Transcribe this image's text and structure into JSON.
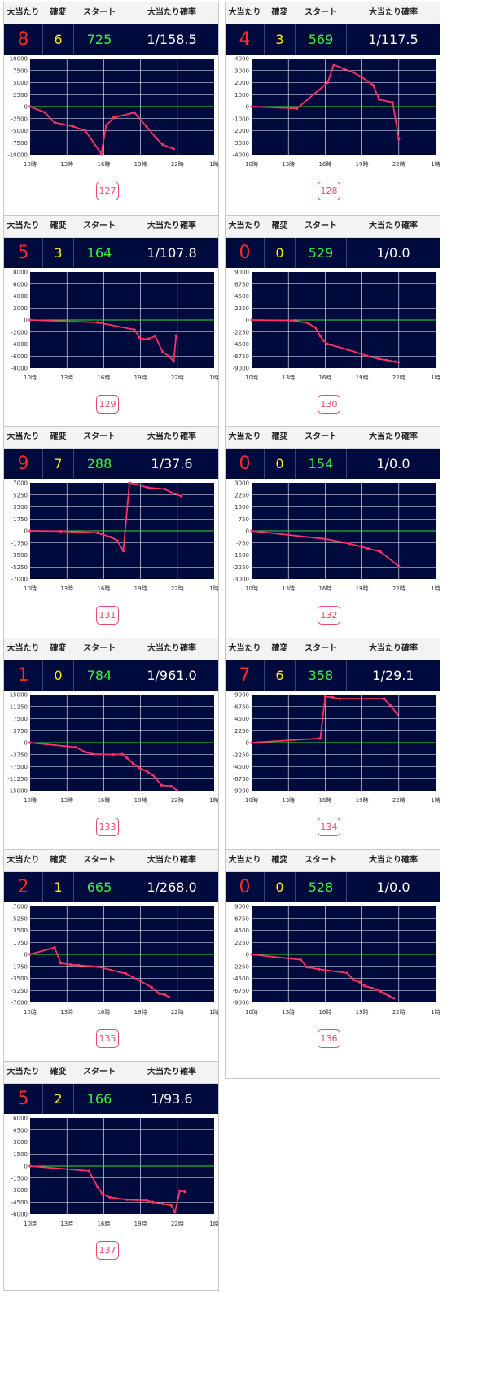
{
  "header": {
    "hits_label": "大当たり",
    "kakuhen_label": "確変",
    "start_label": "スタート",
    "rate_label": "大当たり確率"
  },
  "x_ticks": [
    "10時",
    "13時",
    "16時",
    "19時",
    "22時",
    "1時"
  ],
  "colors": {
    "panel_bg": "#000a3c",
    "zero_line": "#33dd33",
    "series_line": "#ff3366",
    "hits_text": "#ff2a2a",
    "kakuhen_text": "#ffee00",
    "start_text": "#3cf03c",
    "badge": "#e94b6a"
  },
  "machines": [
    {
      "number": "127",
      "hits": "8",
      "kakuhen": "6",
      "start": "725",
      "rate": "1/158.5",
      "chart_data": {
        "type": "line",
        "x_unit": "hour",
        "xlim": [
          10,
          25
        ],
        "ylim": [
          -10000,
          10000
        ],
        "y_ticks": [
          "10000",
          "7500",
          "5000",
          "2500",
          "0",
          "-2500",
          "-5000",
          "-7500",
          "-10000"
        ],
        "x": [
          10.0,
          11.2,
          12.0,
          13.5,
          14.5,
          15.8,
          16.2,
          16.8,
          18.5,
          19.5,
          20.3,
          20.8,
          21.7
        ],
        "y": [
          0,
          -1200,
          -3300,
          -4100,
          -5000,
          -9800,
          -3900,
          -2300,
          -1200,
          -4200,
          -6600,
          -7900,
          -8800
        ]
      }
    },
    {
      "number": "128",
      "hits": "4",
      "kakuhen": "3",
      "start": "569",
      "rate": "1/117.5",
      "chart_data": {
        "type": "line",
        "x_unit": "hour",
        "xlim": [
          10,
          25
        ],
        "ylim": [
          -4000,
          4000
        ],
        "y_ticks": [
          "4000",
          "3000",
          "2000",
          "1000",
          "0",
          "-1000",
          "-2000",
          "-3000",
          "-4000"
        ],
        "x": [
          10.0,
          13.7,
          16.2,
          16.7,
          17.5,
          18.3,
          19.0,
          19.9,
          20.4,
          21.5,
          22.0
        ],
        "y": [
          0,
          -150,
          2000,
          3500,
          3150,
          2850,
          2450,
          1800,
          600,
          350,
          -2700
        ]
      }
    },
    {
      "number": "129",
      "hits": "5",
      "kakuhen": "3",
      "start": "164",
      "rate": "1/107.8",
      "chart_data": {
        "type": "line",
        "x_unit": "hour",
        "xlim": [
          10,
          25
        ],
        "ylim": [
          -8000,
          8000
        ],
        "y_ticks": [
          "8000",
          "6000",
          "4000",
          "2000",
          "0",
          "-2000",
          "-4000",
          "-6000",
          "-8000"
        ],
        "x": [
          10.0,
          15.5,
          18.5,
          18.9,
          19.2,
          19.7,
          20.2,
          20.8,
          21.3,
          21.7,
          21.9
        ],
        "y": [
          0,
          -400,
          -1600,
          -2900,
          -3200,
          -3100,
          -2700,
          -5300,
          -6000,
          -6900,
          -2600
        ]
      }
    },
    {
      "number": "130",
      "hits": "0",
      "kakuhen": "0",
      "start": "529",
      "rate": "1/0.0",
      "chart_data": {
        "type": "line",
        "x_unit": "hour",
        "xlim": [
          10,
          25
        ],
        "ylim": [
          -9000,
          9000
        ],
        "y_ticks": [
          "9000",
          "6750",
          "4500",
          "2250",
          "0",
          "-2250",
          "-4500",
          "-6750",
          "-9000"
        ],
        "x": [
          10.0,
          13.5,
          14.6,
          15.2,
          15.6,
          15.9,
          16.2,
          17.8,
          19.4,
          20.4,
          21.0,
          21.7,
          22.0
        ],
        "y": [
          0,
          -100,
          -600,
          -1400,
          -3000,
          -3900,
          -4500,
          -5500,
          -6700,
          -7300,
          -7500,
          -7800,
          -7900
        ]
      }
    },
    {
      "number": "131",
      "hits": "9",
      "kakuhen": "7",
      "start": "288",
      "rate": "1/37.6",
      "chart_data": {
        "type": "line",
        "x_unit": "hour",
        "xlim": [
          10,
          25
        ],
        "ylim": [
          -7000,
          7000
        ],
        "y_ticks": [
          "7000",
          "5250",
          "3500",
          "1750",
          "0",
          "-1750",
          "-3500",
          "-5250",
          "-7000"
        ],
        "x": [
          10.0,
          12.5,
          15.5,
          16.6,
          17.1,
          17.6,
          18.1,
          18.7,
          19.6,
          21.0,
          21.5,
          22.3
        ],
        "y": [
          0,
          -50,
          -300,
          -900,
          -1400,
          -2900,
          7000,
          6800,
          6300,
          6100,
          5600,
          5100
        ]
      }
    },
    {
      "number": "132",
      "hits": "0",
      "kakuhen": "0",
      "start": "154",
      "rate": "1/0.0",
      "chart_data": {
        "type": "line",
        "x_unit": "hour",
        "xlim": [
          10,
          25
        ],
        "ylim": [
          -3000,
          3000
        ],
        "y_ticks": [
          "3000",
          "2250",
          "1500",
          "750",
          "0",
          "-750",
          "-1500",
          "-2250",
          "-3000"
        ],
        "x": [
          10.0,
          16.0,
          18.0,
          19.5,
          20.5,
          22.0
        ],
        "y": [
          0,
          -500,
          -800,
          -1100,
          -1300,
          -2200
        ]
      }
    },
    {
      "number": "133",
      "hits": "1",
      "kakuhen": "0",
      "start": "784",
      "rate": "1/961.0",
      "chart_data": {
        "type": "line",
        "x_unit": "hour",
        "xlim": [
          10,
          25
        ],
        "ylim": [
          -15000,
          15000
        ],
        "y_ticks": [
          "15000",
          "11250",
          "7500",
          "3750",
          "0",
          "-3750",
          "-7500",
          "-11250",
          "-15000"
        ],
        "x": [
          10.0,
          13.7,
          14.5,
          15.2,
          16.8,
          17.5,
          17.9,
          18.4,
          18.9,
          19.6,
          20.0,
          20.7,
          21.5,
          22.0
        ],
        "y": [
          0,
          -1400,
          -2900,
          -3600,
          -3700,
          -3600,
          -4800,
          -6500,
          -7800,
          -9200,
          -10100,
          -13300,
          -13600,
          -15000
        ]
      }
    },
    {
      "number": "134",
      "hits": "7",
      "kakuhen": "6",
      "start": "358",
      "rate": "1/29.1",
      "chart_data": {
        "type": "line",
        "x_unit": "hour",
        "xlim": [
          10,
          25
        ],
        "ylim": [
          -9000,
          9000
        ],
        "y_ticks": [
          "9000",
          "6750",
          "4500",
          "2250",
          "0",
          "-2250",
          "-4500",
          "-6750",
          "-9000"
        ],
        "x": [
          10.0,
          15.6,
          16.0,
          16.6,
          17.2,
          20.8,
          21.3,
          21.9
        ],
        "y": [
          0,
          800,
          8600,
          8500,
          8200,
          8200,
          7000,
          5300
        ]
      }
    },
    {
      "number": "135",
      "hits": "2",
      "kakuhen": "1",
      "start": "665",
      "rate": "1/268.0",
      "chart_data": {
        "type": "line",
        "x_unit": "hour",
        "xlim": [
          10,
          25
        ],
        "ylim": [
          -7000,
          7000
        ],
        "y_ticks": [
          "7000",
          "5250",
          "3500",
          "1750",
          "0",
          "-1750",
          "-3500",
          "-5250",
          "-7000"
        ],
        "x": [
          10.0,
          12.0,
          12.5,
          13.3,
          14.0,
          15.5,
          17.8,
          19.0,
          19.9,
          20.5,
          21.0,
          21.3
        ],
        "y": [
          0,
          1000,
          -1300,
          -1500,
          -1600,
          -1800,
          -2800,
          -3900,
          -4800,
          -5700,
          -5900,
          -6200
        ]
      }
    },
    {
      "number": "136",
      "hits": "0",
      "kakuhen": "0",
      "start": "528",
      "rate": "1/0.0",
      "chart_data": {
        "type": "line",
        "x_unit": "hour",
        "xlim": [
          10,
          25
        ],
        "ylim": [
          -9000,
          9000
        ],
        "y_ticks": [
          "9000",
          "6750",
          "4500",
          "2250",
          "0",
          "-2250",
          "-4500",
          "-6750",
          "-9000"
        ],
        "x": [
          10.0,
          14.0,
          14.5,
          15.5,
          17.8,
          18.3,
          18.8,
          19.2,
          19.8,
          20.2,
          20.5,
          20.8,
          21.2,
          21.6
        ],
        "y": [
          0,
          -1000,
          -2400,
          -2800,
          -3500,
          -4800,
          -5200,
          -5900,
          -6300,
          -6600,
          -6900,
          -7300,
          -7800,
          -8200
        ]
      }
    },
    {
      "number": "137",
      "hits": "5",
      "kakuhen": "2",
      "start": "166",
      "rate": "1/93.6",
      "chart_data": {
        "type": "line",
        "x_unit": "hour",
        "xlim": [
          10,
          25
        ],
        "ylim": [
          -6000,
          6000
        ],
        "y_ticks": [
          "6000",
          "4500",
          "3000",
          "1500",
          "0",
          "-1500",
          "-3000",
          "-4500",
          "-6000"
        ],
        "x": [
          10.0,
          14.8,
          15.5,
          15.9,
          16.5,
          17.9,
          19.5,
          20.0,
          20.8,
          21.5,
          21.8,
          22.2,
          22.6
        ],
        "y": [
          0,
          -600,
          -2600,
          -3500,
          -3900,
          -4200,
          -4300,
          -4500,
          -4700,
          -4900,
          -5800,
          -3100,
          -3200
        ]
      }
    }
  ]
}
